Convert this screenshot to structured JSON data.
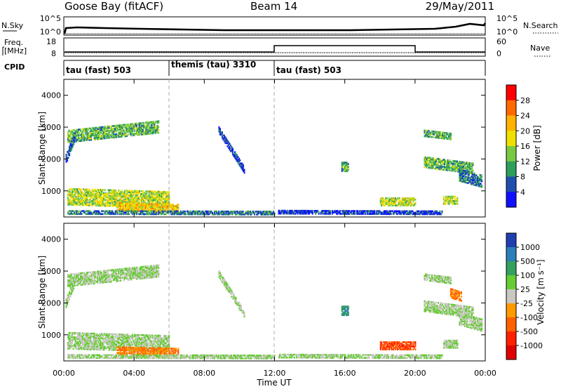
{
  "header": {
    "station": "Goose Bay (fitACF)",
    "beam": "Beam 14",
    "date": "29/May/2011"
  },
  "noise_panel": {
    "left_label": "N.Sky",
    "right_label": "N.Search",
    "left_ticks": [
      "10^5",
      "10^0"
    ],
    "right_ticks": [
      "10^5",
      "10^0"
    ]
  },
  "freq_panel": {
    "left_label": "Freq.",
    "left_unit": "[MHz]",
    "right_label": "Nave",
    "left_ticks": [
      "18",
      "8"
    ],
    "right_ticks": [
      "60",
      "0"
    ]
  },
  "cpid_panel": {
    "label": "CPID",
    "segments": [
      {
        "text": "tau (fast) 503",
        "start_hour": 0
      },
      {
        "text": "themis (tau) 3310",
        "start_hour": 6
      },
      {
        "text": "tau (fast) 503",
        "start_hour": 12
      }
    ]
  },
  "power_colorbar": {
    "title": "Power [dB]",
    "ticks": [
      "28",
      "24",
      "20",
      "16",
      "12",
      "8",
      "4"
    ],
    "colors": [
      "#ff0000",
      "#ff6a00",
      "#ffb300",
      "#f0e000",
      "#7ac943",
      "#2e9e5b",
      "#1f4fae",
      "#1010ff"
    ]
  },
  "velocity_colorbar": {
    "title": "Velocity [m s⁻¹]",
    "ticks": [
      "1000",
      "500",
      "100",
      "25",
      "-25",
      "-100",
      "-500",
      "-1000"
    ],
    "colors": [
      "#1f3fb0",
      "#2c7fb8",
      "#33a060",
      "#66cc33",
      "#c8c8c0",
      "#ff9a00",
      "#ff6000",
      "#ff2000",
      "#e00000"
    ]
  },
  "x_axis": {
    "title": "Time UT",
    "ticks": [
      "00:00",
      "04:00",
      "08:00",
      "12:00",
      "16:00",
      "20:00",
      "00:00"
    ]
  },
  "chart_data": [
    {
      "type": "heatmap",
      "title": "Power",
      "ylabel": "Slant Range [km]",
      "xlabel": "Time UT",
      "xlim": [
        0,
        24
      ],
      "ylim": [
        180,
        4500
      ],
      "yticks": [
        1000,
        2000,
        3000,
        4000
      ],
      "regions": [
        {
          "from": [
            0.2,
            2700
          ],
          "to": [
            5.4,
            3000
          ],
          "thickness": 380,
          "level": 12
        },
        {
          "from": [
            0.1,
            2000
          ],
          "to": [
            0.6,
            2700
          ],
          "thickness": 300,
          "level": 8
        },
        {
          "from": [
            0.2,
            800
          ],
          "to": [
            6.0,
            700
          ],
          "thickness": 500,
          "level": 16
        },
        {
          "from": [
            3.0,
            500
          ],
          "to": [
            6.5,
            450
          ],
          "thickness": 260,
          "level": 20
        },
        {
          "from": [
            0.2,
            320
          ],
          "to": [
            12.0,
            300
          ],
          "thickness": 120,
          "level": 8
        },
        {
          "from": [
            8.8,
            2900
          ],
          "to": [
            10.3,
            1600
          ],
          "thickness": 200,
          "level": 4
        },
        {
          "from": [
            12.2,
            320
          ],
          "to": [
            21.5,
            300
          ],
          "thickness": 100,
          "level": 4
        },
        {
          "from": [
            15.8,
            1750
          ],
          "to": [
            16.2,
            1750
          ],
          "thickness": 300,
          "level": 12
        },
        {
          "from": [
            18.0,
            650
          ],
          "to": [
            20.0,
            650
          ],
          "thickness": 250,
          "level": 16
        },
        {
          "from": [
            20.5,
            2800
          ],
          "to": [
            22.0,
            2700
          ],
          "thickness": 200,
          "level": 12
        },
        {
          "from": [
            20.5,
            1900
          ],
          "to": [
            23.3,
            1700
          ],
          "thickness": 350,
          "level": 12
        },
        {
          "from": [
            22.5,
            1500
          ],
          "to": [
            23.8,
            1300
          ],
          "thickness": 400,
          "level": 8
        },
        {
          "from": [
            21.6,
            700
          ],
          "to": [
            22.4,
            700
          ],
          "thickness": 250,
          "level": 16
        }
      ]
    },
    {
      "type": "heatmap",
      "title": "Velocity",
      "ylabel": "Slant Range [km]",
      "xlabel": "Time UT",
      "xlim": [
        0,
        24
      ],
      "ylim": [
        180,
        4500
      ],
      "yticks": [
        1000,
        2000,
        3000,
        4000
      ],
      "regions": [
        {
          "from": [
            0.2,
            2700
          ],
          "to": [
            5.4,
            3000
          ],
          "thickness": 380,
          "level": 25
        },
        {
          "from": [
            0.1,
            2000
          ],
          "to": [
            0.6,
            2700
          ],
          "thickness": 300,
          "level": 25
        },
        {
          "from": [
            0.2,
            800
          ],
          "to": [
            6.0,
            700
          ],
          "thickness": 500,
          "level": 25
        },
        {
          "from": [
            3.0,
            500
          ],
          "to": [
            6.5,
            450
          ],
          "thickness": 260,
          "level": -100
        },
        {
          "from": [
            0.2,
            320
          ],
          "to": [
            12.0,
            300
          ],
          "thickness": 120,
          "level": 25
        },
        {
          "from": [
            8.8,
            2900
          ],
          "to": [
            10.3,
            1600
          ],
          "thickness": 200,
          "level": 25
        },
        {
          "from": [
            12.2,
            320
          ],
          "to": [
            21.5,
            300
          ],
          "thickness": 100,
          "level": 25
        },
        {
          "from": [
            15.8,
            1750
          ],
          "to": [
            16.2,
            1750
          ],
          "thickness": 300,
          "level": 500
        },
        {
          "from": [
            18.0,
            650
          ],
          "to": [
            20.0,
            650
          ],
          "thickness": 250,
          "level": -500
        },
        {
          "from": [
            20.5,
            2800
          ],
          "to": [
            22.0,
            2700
          ],
          "thickness": 200,
          "level": 25
        },
        {
          "from": [
            20.5,
            1900
          ],
          "to": [
            23.3,
            1700
          ],
          "thickness": 350,
          "level": 25
        },
        {
          "from": [
            22.5,
            1500
          ],
          "to": [
            23.8,
            1300
          ],
          "thickness": 400,
          "level": 25
        },
        {
          "from": [
            21.6,
            700
          ],
          "to": [
            22.4,
            700
          ],
          "thickness": 250,
          "level": 25
        },
        {
          "from": [
            22.0,
            2300
          ],
          "to": [
            22.6,
            2200
          ],
          "thickness": 300,
          "level": -100
        }
      ]
    }
  ]
}
